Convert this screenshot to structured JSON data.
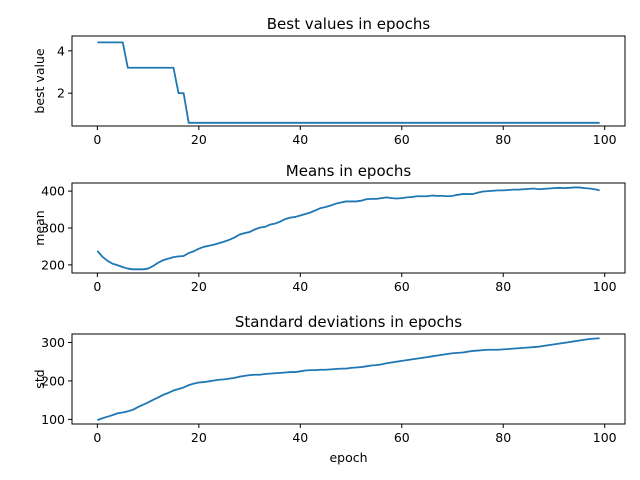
{
  "chart_data": [
    {
      "type": "line",
      "title": "Best values in epochs",
      "xlabel": "",
      "ylabel": "best value",
      "xlim": [
        -5,
        104
      ],
      "ylim": [
        0.45,
        4.7
      ],
      "xticks": [
        0,
        20,
        40,
        60,
        80,
        100
      ],
      "yticks": [
        2,
        4
      ],
      "grid": false,
      "color": "#1f77b4",
      "x": [
        0,
        1,
        2,
        3,
        4,
        5,
        6,
        7,
        8,
        9,
        10,
        11,
        12,
        13,
        14,
        15,
        16,
        17,
        18,
        19,
        20,
        21,
        22,
        23,
        24,
        25,
        26,
        27,
        28,
        29,
        30,
        31,
        32,
        33,
        34,
        35,
        36,
        37,
        38,
        39,
        40,
        41,
        42,
        43,
        44,
        45,
        46,
        47,
        48,
        49,
        50,
        51,
        52,
        53,
        54,
        55,
        56,
        57,
        58,
        59,
        60,
        61,
        62,
        63,
        64,
        65,
        66,
        67,
        68,
        69,
        70,
        71,
        72,
        73,
        74,
        75,
        76,
        77,
        78,
        79,
        80,
        81,
        82,
        83,
        84,
        85,
        86,
        87,
        88,
        89,
        90,
        91,
        92,
        93,
        94,
        95,
        96,
        97,
        98,
        99
      ],
      "y": [
        4.4,
        4.4,
        4.4,
        4.4,
        4.4,
        4.4,
        3.2,
        3.2,
        3.2,
        3.2,
        3.2,
        3.2,
        3.2,
        3.2,
        3.2,
        3.2,
        2.0,
        2.0,
        0.6,
        0.6,
        0.6,
        0.6,
        0.6,
        0.6,
        0.6,
        0.6,
        0.6,
        0.6,
        0.6,
        0.6,
        0.6,
        0.6,
        0.6,
        0.6,
        0.6,
        0.6,
        0.6,
        0.6,
        0.6,
        0.6,
        0.6,
        0.6,
        0.6,
        0.6,
        0.6,
        0.6,
        0.6,
        0.6,
        0.6,
        0.6,
        0.6,
        0.6,
        0.6,
        0.6,
        0.6,
        0.6,
        0.6,
        0.6,
        0.6,
        0.6,
        0.6,
        0.6,
        0.6,
        0.6,
        0.6,
        0.6,
        0.6,
        0.6,
        0.6,
        0.6,
        0.6,
        0.6,
        0.6,
        0.6,
        0.6,
        0.6,
        0.6,
        0.6,
        0.6,
        0.6,
        0.6,
        0.6,
        0.6,
        0.6,
        0.6,
        0.6,
        0.6,
        0.6,
        0.6,
        0.6,
        0.6,
        0.6,
        0.6,
        0.6,
        0.6,
        0.6,
        0.6,
        0.6,
        0.6,
        0.6
      ]
    },
    {
      "type": "line",
      "title": "Means in epochs",
      "xlabel": "",
      "ylabel": "mean",
      "xlim": [
        -5,
        104
      ],
      "ylim": [
        178,
        422
      ],
      "xticks": [
        0,
        20,
        40,
        60,
        80,
        100
      ],
      "yticks": [
        200,
        300,
        400
      ],
      "grid": false,
      "color": "#1f77b4",
      "x": [
        0,
        1,
        2,
        3,
        4,
        5,
        6,
        7,
        8,
        9,
        10,
        11,
        12,
        13,
        14,
        15,
        16,
        17,
        18,
        19,
        20,
        21,
        22,
        23,
        24,
        25,
        26,
        27,
        28,
        29,
        30,
        31,
        32,
        33,
        34,
        35,
        36,
        37,
        38,
        39,
        40,
        41,
        42,
        43,
        44,
        45,
        46,
        47,
        48,
        49,
        50,
        51,
        52,
        53,
        54,
        55,
        56,
        57,
        58,
        59,
        60,
        61,
        62,
        63,
        64,
        65,
        66,
        67,
        68,
        69,
        70,
        71,
        72,
        73,
        74,
        75,
        76,
        77,
        78,
        79,
        80,
        81,
        82,
        83,
        84,
        85,
        86,
        87,
        88,
        89,
        90,
        91,
        92,
        93,
        94,
        95,
        96,
        97,
        98,
        99
      ],
      "y": [
        238,
        222,
        211,
        203,
        199,
        194,
        190,
        188,
        188,
        188,
        190,
        197,
        206,
        213,
        217,
        221,
        223,
        224,
        232,
        237,
        244,
        249,
        252,
        255,
        259,
        263,
        268,
        274,
        282,
        286,
        289,
        296,
        301,
        303,
        309,
        312,
        317,
        324,
        328,
        330,
        334,
        338,
        342,
        348,
        354,
        357,
        361,
        366,
        369,
        372,
        372,
        372,
        374,
        378,
        379,
        379,
        381,
        383,
        381,
        380,
        381,
        383,
        384,
        386,
        386,
        386,
        388,
        387,
        387,
        386,
        387,
        390,
        392,
        392,
        392,
        396,
        399,
        400,
        401,
        402,
        402,
        403,
        404,
        404,
        405,
        406,
        407,
        405,
        406,
        407,
        408,
        409,
        408,
        409,
        410,
        410,
        408,
        407,
        405,
        402
      ]
    },
    {
      "type": "line",
      "title": "Standard deviations in epochs",
      "xlabel": "epoch",
      "ylabel": "std",
      "xlim": [
        -5,
        104
      ],
      "ylim": [
        88,
        322
      ],
      "xticks": [
        0,
        20,
        40,
        60,
        80,
        100
      ],
      "yticks": [
        100,
        200,
        300
      ],
      "grid": false,
      "color": "#1f77b4",
      "x": [
        0,
        1,
        2,
        3,
        4,
        5,
        6,
        7,
        8,
        9,
        10,
        11,
        12,
        13,
        14,
        15,
        16,
        17,
        18,
        19,
        20,
        21,
        22,
        23,
        24,
        25,
        26,
        27,
        28,
        29,
        30,
        31,
        32,
        33,
        34,
        35,
        36,
        37,
        38,
        39,
        40,
        41,
        42,
        43,
        44,
        45,
        46,
        47,
        48,
        49,
        50,
        51,
        52,
        53,
        54,
        55,
        56,
        57,
        58,
        59,
        60,
        61,
        62,
        63,
        64,
        65,
        66,
        67,
        68,
        69,
        70,
        71,
        72,
        73,
        74,
        75,
        76,
        77,
        78,
        79,
        80,
        81,
        82,
        83,
        84,
        85,
        86,
        87,
        88,
        89,
        90,
        91,
        92,
        93,
        94,
        95,
        96,
        97,
        98,
        99
      ],
      "y": [
        98,
        103,
        107,
        111,
        116,
        118,
        121,
        125,
        132,
        138,
        144,
        151,
        157,
        164,
        169,
        175,
        179,
        183,
        189,
        193,
        196,
        197,
        199,
        201,
        203,
        204,
        206,
        208,
        211,
        213,
        215,
        216,
        216,
        218,
        219,
        220,
        221,
        222,
        223,
        223,
        225,
        227,
        228,
        228,
        229,
        229,
        230,
        231,
        232,
        232,
        234,
        235,
        236,
        238,
        240,
        241,
        243,
        246,
        248,
        250,
        252,
        254,
        256,
        258,
        260,
        262,
        264,
        266,
        268,
        270,
        272,
        273,
        274,
        276,
        278,
        279,
        280,
        281,
        281,
        281,
        282,
        283,
        284,
        285,
        286,
        287,
        288,
        289,
        291,
        293,
        295,
        297,
        299,
        301,
        303,
        305,
        307,
        309,
        310,
        311
      ]
    }
  ]
}
